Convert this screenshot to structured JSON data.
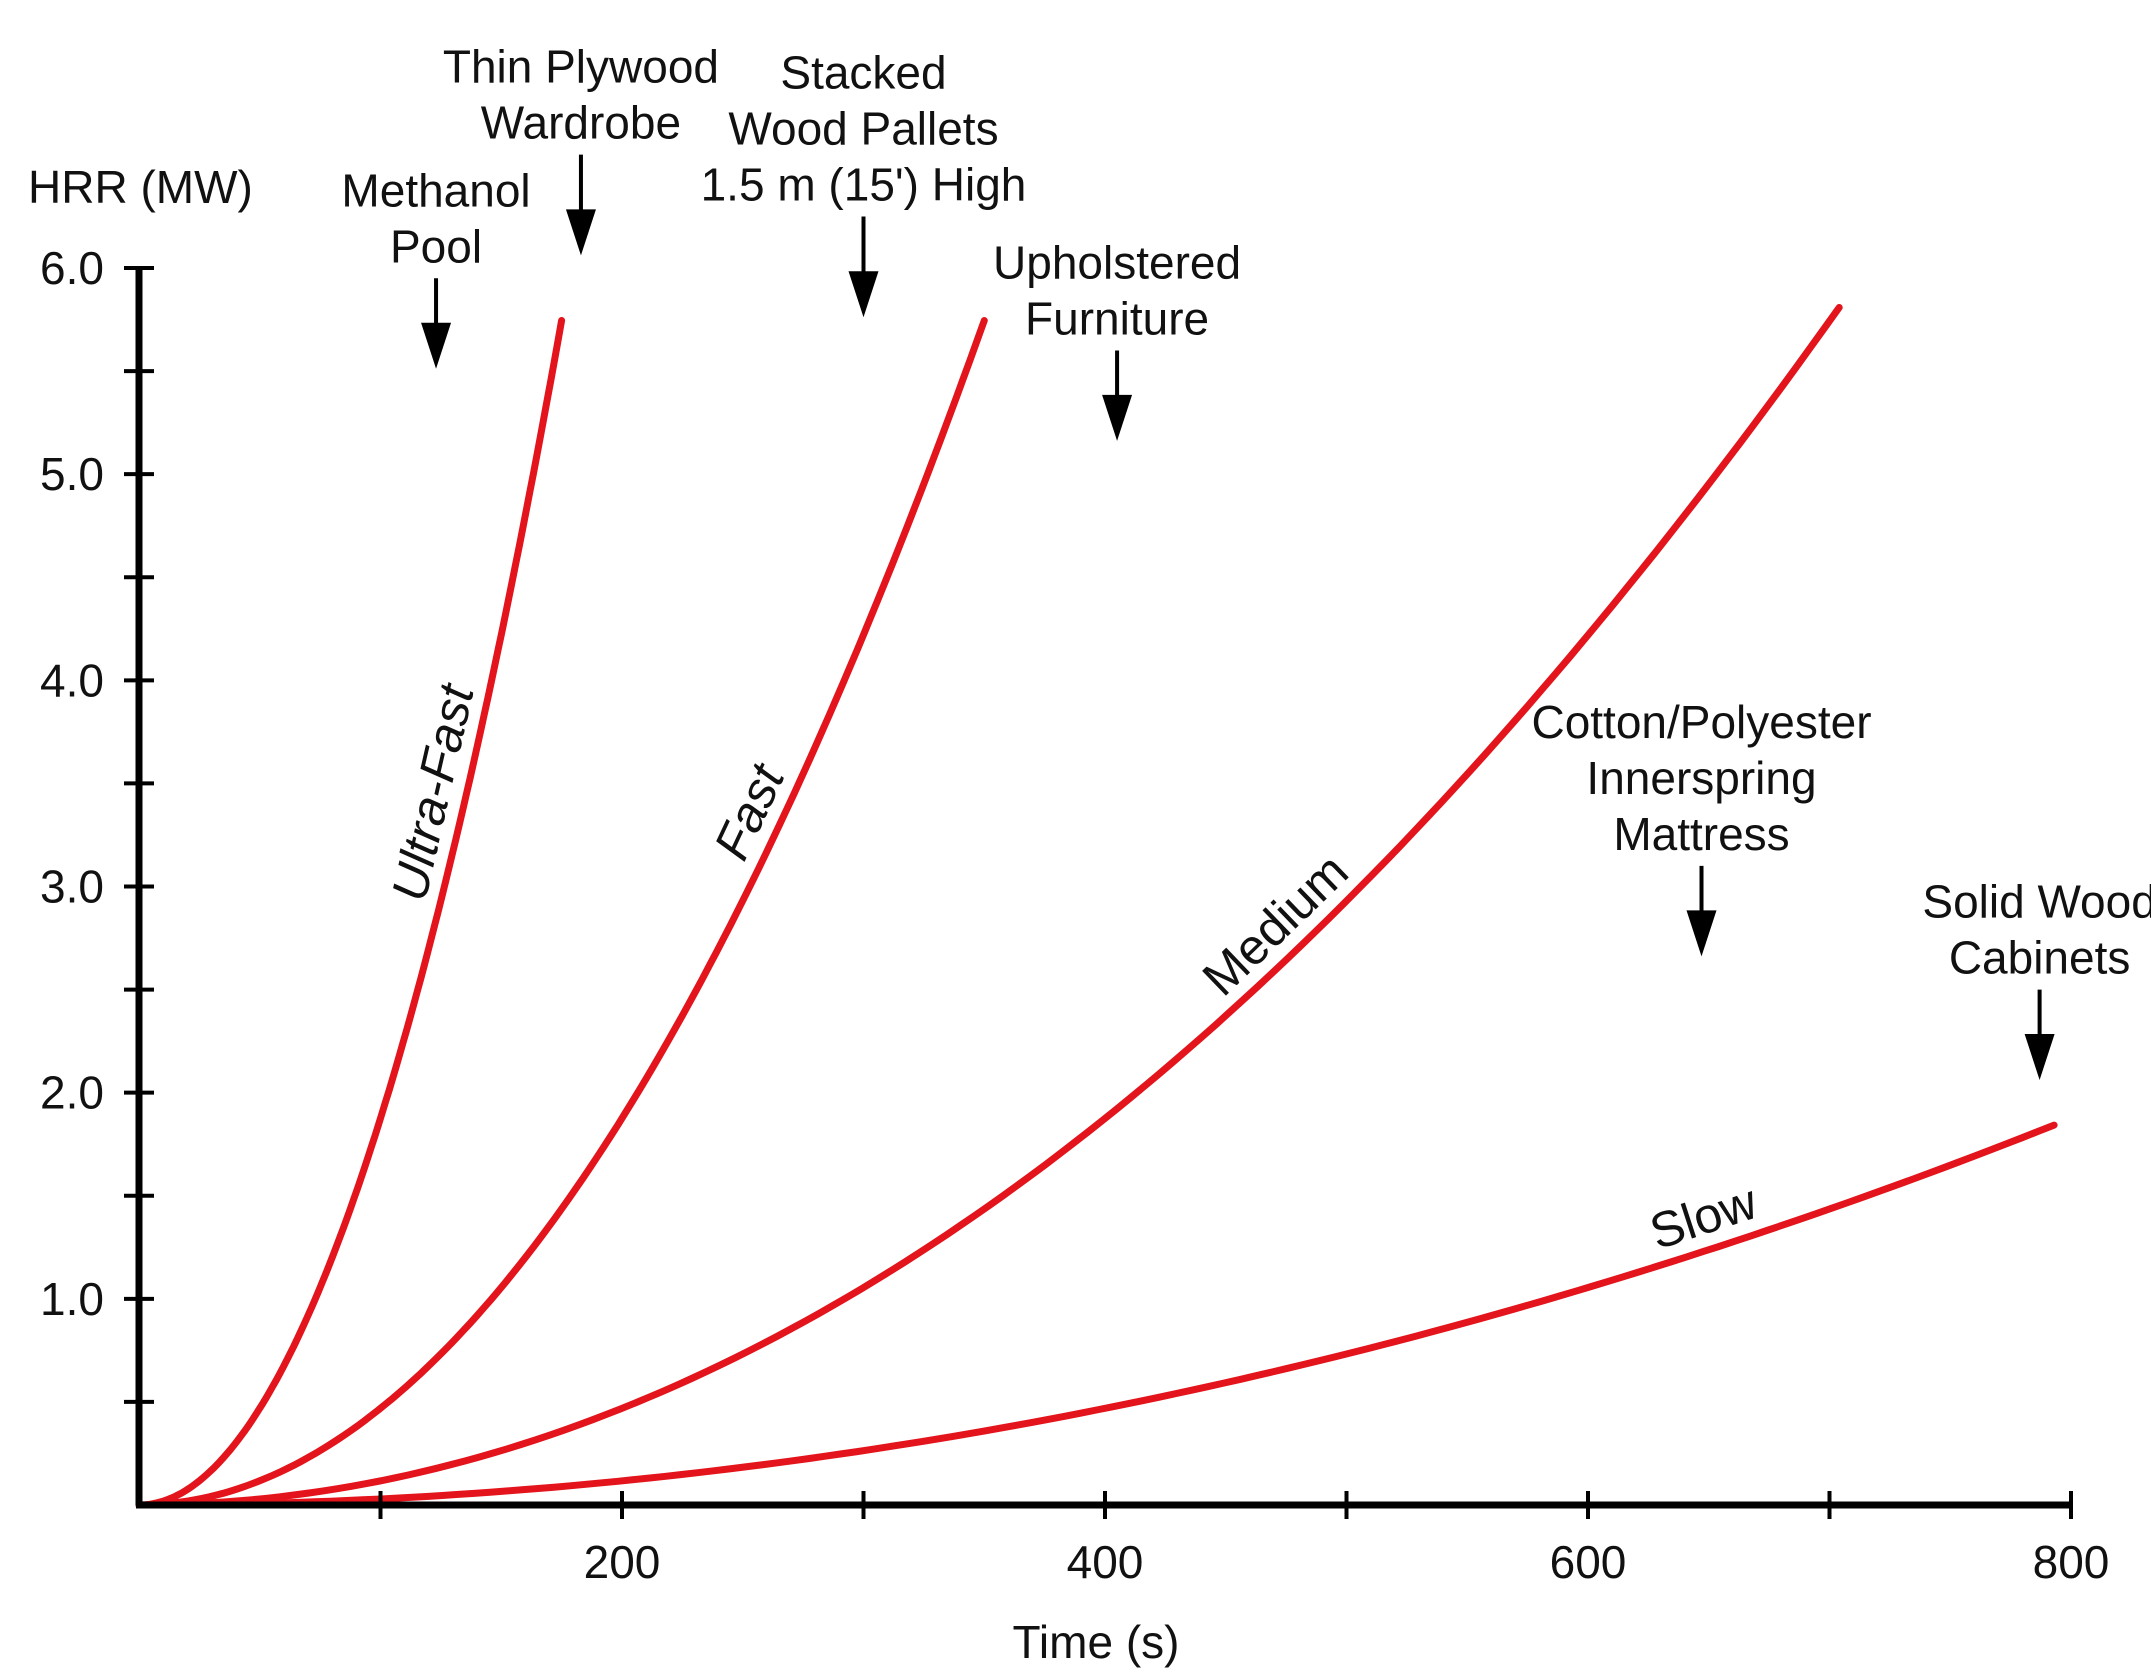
{
  "chart_data": {
    "type": "line",
    "ylabel": "HRR (MW)",
    "xlabel": "Time (s)",
    "xlim": [
      0,
      800
    ],
    "ylim": [
      0,
      6.0
    ],
    "x_ticks_minor": [
      100,
      200,
      300,
      400,
      500,
      600,
      700,
      800
    ],
    "x_tick_labels": [
      {
        "value": 200,
        "label": "200"
      },
      {
        "value": 400,
        "label": "400"
      },
      {
        "value": 600,
        "label": "600"
      },
      {
        "value": 800,
        "label": "800"
      }
    ],
    "y_ticks_minor": [
      0.5,
      1.0,
      1.5,
      2.0,
      2.5,
      3.0,
      3.5,
      4.0,
      4.5,
      5.0,
      5.5,
      6.0
    ],
    "y_tick_labels": [
      {
        "value": 1.0,
        "label": "1.0"
      },
      {
        "value": 2.0,
        "label": "2.0"
      },
      {
        "value": 3.0,
        "label": "3.0"
      },
      {
        "value": 4.0,
        "label": "4.0"
      },
      {
        "value": 5.0,
        "label": "5.0"
      },
      {
        "value": 6.0,
        "label": "6.0"
      }
    ],
    "series": [
      {
        "name": "Ultra-Fast",
        "alpha": 0.1876,
        "t_end": 175,
        "color": "#e3141b",
        "label_at": 135,
        "italic": true
      },
      {
        "name": "Fast",
        "alpha": 0.0469,
        "t_end": 350,
        "color": "#e3141b",
        "label_at": 265,
        "italic": true
      },
      {
        "name": "Medium",
        "alpha": 0.01172,
        "t_end": 704,
        "color": "#e3141b",
        "label_at": 480,
        "italic": false
      },
      {
        "name": "Slow",
        "alpha": 0.00293,
        "t_end": 793,
        "color": "#e3141b",
        "label_at": 652,
        "italic": false
      }
    ],
    "annotations": [
      {
        "lines": [
          "Methanol",
          "Pool"
        ],
        "x": 123,
        "arrow_from": 5.95,
        "arrow_to": 5.55
      },
      {
        "lines": [
          "Thin Plywood",
          "Wardrobe"
        ],
        "x": 183,
        "arrow_from": 6.55,
        "arrow_to": 6.1
      },
      {
        "lines": [
          "Stacked",
          "Wood Pallets",
          "1.5 m (15') High"
        ],
        "x": 300,
        "arrow_from": 6.25,
        "arrow_to": 5.8
      },
      {
        "lines": [
          "Upholstered",
          "Furniture"
        ],
        "x": 405,
        "arrow_from": 5.6,
        "arrow_to": 5.2
      },
      {
        "lines": [
          "Cotton/Polyester",
          "Innerspring",
          "Mattress"
        ],
        "x": 647,
        "arrow_from": 3.1,
        "arrow_to": 2.7
      },
      {
        "lines": [
          "Solid Wood",
          "Cabinets"
        ],
        "x": 787,
        "arrow_from": 2.5,
        "arrow_to": 2.1
      }
    ]
  }
}
